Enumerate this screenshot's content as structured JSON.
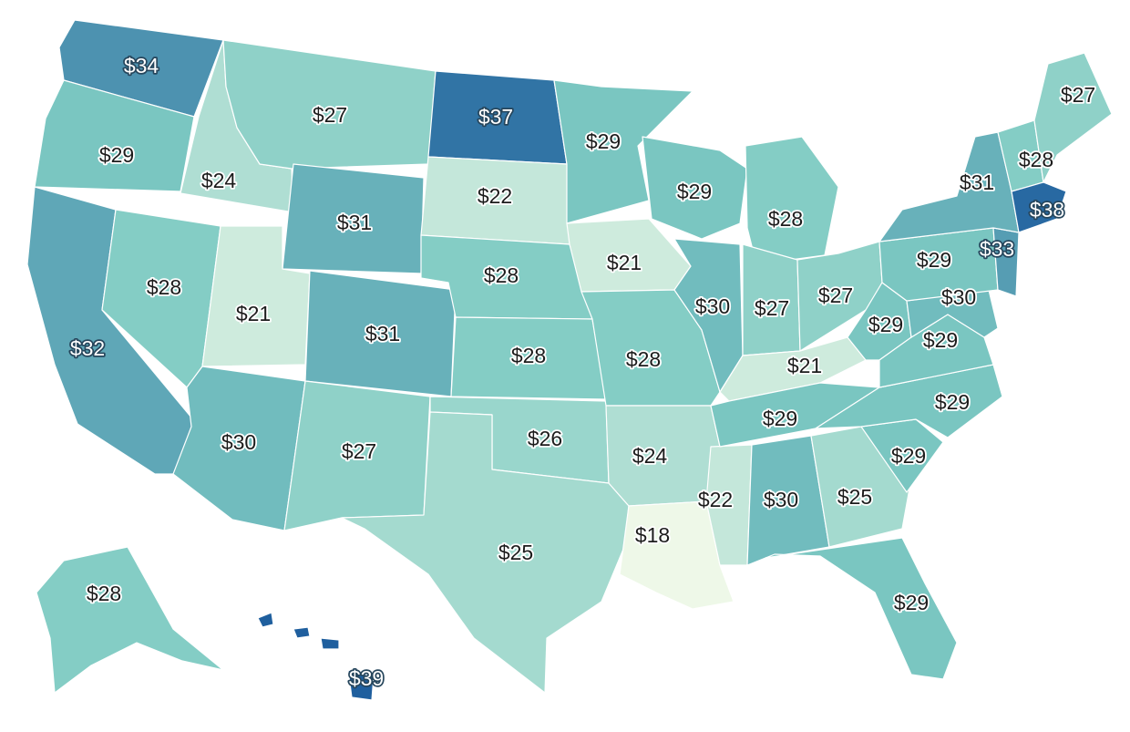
{
  "map": {
    "type": "choropleth",
    "region": "United States",
    "legend": "none",
    "value_prefix": "$",
    "color_scale": {
      "low": "#eef8e8",
      "mid": "#7fcbc3",
      "high": "#1f5f9e"
    },
    "states": [
      {
        "code": "WA",
        "label": "$34",
        "value": 34
      },
      {
        "code": "OR",
        "label": "$29",
        "value": 29
      },
      {
        "code": "CA",
        "label": "$32",
        "value": 32
      },
      {
        "code": "ID",
        "label": "$24",
        "value": 24
      },
      {
        "code": "NV",
        "label": "$28",
        "value": 28
      },
      {
        "code": "MT",
        "label": "$27",
        "value": 27
      },
      {
        "code": "WY",
        "label": "$31",
        "value": 31
      },
      {
        "code": "UT",
        "label": "$21",
        "value": 21
      },
      {
        "code": "CO",
        "label": "$31",
        "value": 31
      },
      {
        "code": "AZ",
        "label": "$30",
        "value": 30
      },
      {
        "code": "NM",
        "label": "$27",
        "value": 27
      },
      {
        "code": "ND",
        "label": "$37",
        "value": 37
      },
      {
        "code": "SD",
        "label": "$22",
        "value": 22
      },
      {
        "code": "NE",
        "label": "$28",
        "value": 28
      },
      {
        "code": "KS",
        "label": "$28",
        "value": 28
      },
      {
        "code": "OK",
        "label": "$26",
        "value": 26
      },
      {
        "code": "TX",
        "label": "$25",
        "value": 25
      },
      {
        "code": "MN",
        "label": "$29",
        "value": 29
      },
      {
        "code": "IA",
        "label": "$21",
        "value": 21
      },
      {
        "code": "MO",
        "label": "$28",
        "value": 28
      },
      {
        "code": "AR",
        "label": "$24",
        "value": 24
      },
      {
        "code": "LA",
        "label": "$18",
        "value": 18
      },
      {
        "code": "WI",
        "label": "$29",
        "value": 29
      },
      {
        "code": "IL",
        "label": "$30",
        "value": 30
      },
      {
        "code": "MS",
        "label": "$22",
        "value": 22
      },
      {
        "code": "MI",
        "label": "$28",
        "value": 28
      },
      {
        "code": "IN",
        "label": "$27",
        "value": 27
      },
      {
        "code": "KY",
        "label": "$21",
        "value": 21
      },
      {
        "code": "TN",
        "label": "$29",
        "value": 29
      },
      {
        "code": "AL",
        "label": "$30",
        "value": 30
      },
      {
        "code": "OH",
        "label": "$27",
        "value": 27
      },
      {
        "code": "GA",
        "label": "$25",
        "value": 25
      },
      {
        "code": "FL",
        "label": "$29",
        "value": 29
      },
      {
        "code": "SC",
        "label": "$29",
        "value": 29
      },
      {
        "code": "NC",
        "label": "$29",
        "value": 29
      },
      {
        "code": "WV",
        "label": "$29",
        "value": 29
      },
      {
        "code": "VA",
        "label": "$29",
        "value": 29
      },
      {
        "code": "MD",
        "label": "$30",
        "value": 30
      },
      {
        "code": "PA",
        "label": "$29",
        "value": 29
      },
      {
        "code": "NJ",
        "label": "$33",
        "value": 33
      },
      {
        "code": "NY",
        "label": "$31",
        "value": 31
      },
      {
        "code": "VT",
        "label": "$28",
        "value": 28
      },
      {
        "code": "MA",
        "label": "$38",
        "value": 38
      },
      {
        "code": "ME",
        "label": "$27",
        "value": 27
      },
      {
        "code": "AK",
        "label": "$28",
        "value": 28
      },
      {
        "code": "HI",
        "label": "$39",
        "value": 39
      }
    ]
  }
}
